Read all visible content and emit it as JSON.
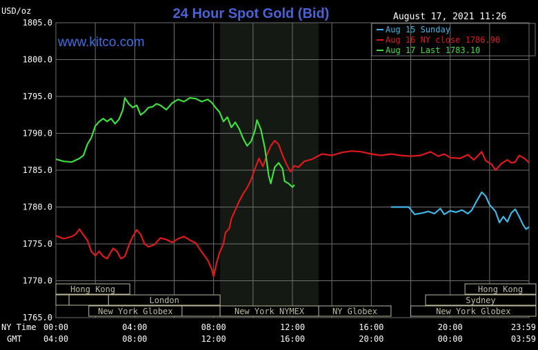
{
  "header": {
    "unit": "USD/oz",
    "title": "24 Hour Spot Gold (Bid)",
    "timestamp": "August 17, 2021 11:26",
    "site": "www.kitco.com"
  },
  "axis_labels": {
    "ny_time": "NY Time",
    "gmt": "GMT"
  },
  "colors": {
    "background": "#000000",
    "grid": "#707070",
    "title": "#4a63d8",
    "site": "#3f6fe6",
    "text": "#ffffff",
    "session_shade": "#141914",
    "session_box": "#bcbc9a",
    "aug15": "#3fb8e8",
    "aug16": "#e01a1a",
    "aug17": "#3fe03f"
  },
  "sessions": [
    {
      "label": "Hong Kong",
      "row": 0,
      "start": 0,
      "end": 3.75
    },
    {
      "label": "",
      "row": 1,
      "start": 0,
      "end": 0.67
    },
    {
      "label": "",
      "row": 1,
      "start": 0.67,
      "end": 2.67
    },
    {
      "label": "London",
      "row": 1,
      "start": 2.67,
      "end": 8.33
    },
    {
      "label": "New York Globex",
      "row": 2,
      "start": 1.67,
      "end": 6.4
    },
    {
      "label": "",
      "row": 2,
      "start": 6.4,
      "end": 8.33
    },
    {
      "label": "New York NYMEX",
      "row": 2,
      "start": 8.33,
      "end": 13.33
    },
    {
      "label": "NY Globex",
      "row": 2,
      "start": 13.33,
      "end": 17.0
    },
    {
      "label": "Hong Kong",
      "row": 0,
      "start": 20.75,
      "end": 24.5
    },
    {
      "label": "Sydney",
      "row": 1,
      "start": 18.75,
      "end": 24.5
    },
    {
      "label": "New York Globex",
      "row": 2,
      "start": 18.0,
      "end": 24.5
    }
  ],
  "chart_data": {
    "type": "line",
    "ylabel": "USD/oz",
    "ylim": [
      1765,
      1805
    ],
    "xlim": [
      0,
      24
    ],
    "shaded_range": [
      8.33,
      13.33
    ],
    "grid": true,
    "legend_position": "top-right",
    "yticks": [
      "1805.0",
      "1800.0",
      "1795.0",
      "1790.0",
      "1785.0",
      "1780.0",
      "1775.0",
      "1770.0",
      "1765.0"
    ],
    "xticks_ny": [
      "00:00",
      "04:00",
      "08:00",
      "12:00",
      "16:00",
      "20:00",
      "23:59"
    ],
    "xticks_gmt": [
      "04:00",
      "08:00",
      "12:00",
      "16:00",
      "20:00",
      "00:00",
      "03:59"
    ],
    "series": [
      {
        "name": "Aug 15 Sunday",
        "color": "#3fb8e8",
        "points": [
          [
            17.0,
            1780.0
          ],
          [
            17.9,
            1780.0
          ],
          [
            18.2,
            1779.0
          ],
          [
            18.6,
            1779.2
          ],
          [
            18.9,
            1779.4
          ],
          [
            19.2,
            1779.1
          ],
          [
            19.5,
            1779.8
          ],
          [
            19.7,
            1779.0
          ],
          [
            20.0,
            1779.5
          ],
          [
            20.3,
            1779.3
          ],
          [
            20.6,
            1779.6
          ],
          [
            20.9,
            1779.1
          ],
          [
            21.1,
            1779.6
          ],
          [
            21.3,
            1780.6
          ],
          [
            21.6,
            1782.0
          ],
          [
            21.8,
            1781.5
          ],
          [
            22.0,
            1780.3
          ],
          [
            22.3,
            1779.4
          ],
          [
            22.5,
            1777.9
          ],
          [
            22.7,
            1778.7
          ],
          [
            22.9,
            1778.0
          ],
          [
            23.1,
            1779.2
          ],
          [
            23.3,
            1779.7
          ],
          [
            23.5,
            1778.7
          ],
          [
            23.7,
            1777.6
          ],
          [
            23.85,
            1777.0
          ],
          [
            24.0,
            1777.3
          ]
        ]
      },
      {
        "name": "Aug 16 NY close 1786.90",
        "color": "#e01a1a",
        "points": [
          [
            0,
            1776.1
          ],
          [
            0.4,
            1775.7
          ],
          [
            0.8,
            1776.0
          ],
          [
            1.0,
            1776.3
          ],
          [
            1.2,
            1777.0
          ],
          [
            1.4,
            1776.2
          ],
          [
            1.6,
            1775.5
          ],
          [
            1.8,
            1774.0
          ],
          [
            2.0,
            1773.4
          ],
          [
            2.2,
            1774.0
          ],
          [
            2.4,
            1773.3
          ],
          [
            2.6,
            1773.0
          ],
          [
            2.9,
            1774.4
          ],
          [
            3.1,
            1774.0
          ],
          [
            3.3,
            1773.0
          ],
          [
            3.5,
            1773.3
          ],
          [
            3.7,
            1774.8
          ],
          [
            3.9,
            1776.0
          ],
          [
            4.1,
            1776.9
          ],
          [
            4.3,
            1776.3
          ],
          [
            4.5,
            1775.0
          ],
          [
            4.7,
            1774.6
          ],
          [
            5.0,
            1774.9
          ],
          [
            5.3,
            1775.8
          ],
          [
            5.6,
            1775.6
          ],
          [
            5.9,
            1775.2
          ],
          [
            6.2,
            1775.7
          ],
          [
            6.5,
            1776.0
          ],
          [
            6.8,
            1775.5
          ],
          [
            7.1,
            1775.1
          ],
          [
            7.4,
            1773.9
          ],
          [
            7.7,
            1772.8
          ],
          [
            7.9,
            1771.6
          ],
          [
            8.0,
            1770.6
          ],
          [
            8.15,
            1772.4
          ],
          [
            8.3,
            1773.8
          ],
          [
            8.5,
            1775.0
          ],
          [
            8.6,
            1776.5
          ],
          [
            8.8,
            1777.1
          ],
          [
            8.9,
            1778.4
          ],
          [
            9.1,
            1779.6
          ],
          [
            9.3,
            1780.8
          ],
          [
            9.5,
            1781.8
          ],
          [
            9.7,
            1782.6
          ],
          [
            9.9,
            1783.7
          ],
          [
            10.1,
            1785.2
          ],
          [
            10.3,
            1786.6
          ],
          [
            10.5,
            1785.5
          ],
          [
            10.7,
            1787.0
          ],
          [
            10.9,
            1788.3
          ],
          [
            11.1,
            1789.0
          ],
          [
            11.3,
            1788.5
          ],
          [
            11.5,
            1787.0
          ],
          [
            11.7,
            1785.8
          ],
          [
            11.9,
            1784.8
          ],
          [
            12.1,
            1785.6
          ],
          [
            12.3,
            1785.4
          ],
          [
            12.6,
            1786.2
          ],
          [
            13.0,
            1786.5
          ],
          [
            13.5,
            1787.2
          ],
          [
            14.0,
            1787.0
          ],
          [
            14.5,
            1787.4
          ],
          [
            15.0,
            1787.6
          ],
          [
            15.5,
            1787.5
          ],
          [
            16.0,
            1787.2
          ],
          [
            16.5,
            1787.0
          ],
          [
            17.0,
            1787.2
          ],
          [
            17.5,
            1787.0
          ],
          [
            18.0,
            1786.9
          ],
          [
            18.5,
            1787.0
          ],
          [
            19.0,
            1787.5
          ],
          [
            19.4,
            1786.9
          ],
          [
            19.7,
            1787.2
          ],
          [
            20.0,
            1786.7
          ],
          [
            20.5,
            1786.6
          ],
          [
            20.9,
            1787.1
          ],
          [
            21.2,
            1786.4
          ],
          [
            21.6,
            1787.5
          ],
          [
            21.8,
            1786.3
          ],
          [
            22.1,
            1785.8
          ],
          [
            22.3,
            1785.0
          ],
          [
            22.6,
            1785.9
          ],
          [
            22.9,
            1786.4
          ],
          [
            23.1,
            1786.0
          ],
          [
            23.3,
            1786.1
          ],
          [
            23.5,
            1787.0
          ],
          [
            23.7,
            1786.7
          ],
          [
            23.85,
            1786.4
          ],
          [
            24.0,
            1786.0
          ]
        ]
      },
      {
        "name": "Aug 17 Last 1783.10",
        "color": "#3fe03f",
        "points": [
          [
            0,
            1786.5
          ],
          [
            0.4,
            1786.2
          ],
          [
            0.8,
            1786.1
          ],
          [
            1.2,
            1786.6
          ],
          [
            1.4,
            1787.0
          ],
          [
            1.6,
            1788.5
          ],
          [
            1.8,
            1789.4
          ],
          [
            2.0,
            1791.0
          ],
          [
            2.2,
            1791.6
          ],
          [
            2.4,
            1792.0
          ],
          [
            2.6,
            1791.6
          ],
          [
            2.8,
            1792.0
          ],
          [
            3.0,
            1791.3
          ],
          [
            3.2,
            1791.9
          ],
          [
            3.4,
            1793.2
          ],
          [
            3.5,
            1794.8
          ],
          [
            3.7,
            1794.0
          ],
          [
            3.9,
            1793.5
          ],
          [
            4.1,
            1793.8
          ],
          [
            4.3,
            1792.5
          ],
          [
            4.5,
            1792.9
          ],
          [
            4.7,
            1793.5
          ],
          [
            4.9,
            1793.6
          ],
          [
            5.1,
            1794.0
          ],
          [
            5.3,
            1793.8
          ],
          [
            5.6,
            1793.2
          ],
          [
            5.9,
            1794.1
          ],
          [
            6.2,
            1794.6
          ],
          [
            6.5,
            1794.3
          ],
          [
            6.8,
            1794.8
          ],
          [
            7.1,
            1794.7
          ],
          [
            7.4,
            1794.3
          ],
          [
            7.7,
            1794.6
          ],
          [
            7.9,
            1794.2
          ],
          [
            8.1,
            1793.5
          ],
          [
            8.3,
            1792.9
          ],
          [
            8.5,
            1791.6
          ],
          [
            8.7,
            1792.2
          ],
          [
            8.9,
            1790.8
          ],
          [
            9.1,
            1791.5
          ],
          [
            9.3,
            1790.6
          ],
          [
            9.5,
            1789.3
          ],
          [
            9.7,
            1788.3
          ],
          [
            9.9,
            1788.9
          ],
          [
            10.1,
            1790.4
          ],
          [
            10.2,
            1791.8
          ],
          [
            10.4,
            1790.5
          ],
          [
            10.6,
            1788.0
          ],
          [
            10.8,
            1784.2
          ],
          [
            10.9,
            1783.2
          ],
          [
            11.1,
            1785.4
          ],
          [
            11.3,
            1786.0
          ],
          [
            11.5,
            1785.2
          ],
          [
            11.6,
            1783.5
          ],
          [
            11.8,
            1783.2
          ],
          [
            12.0,
            1782.7
          ],
          [
            12.1,
            1783.0
          ]
        ]
      }
    ]
  }
}
